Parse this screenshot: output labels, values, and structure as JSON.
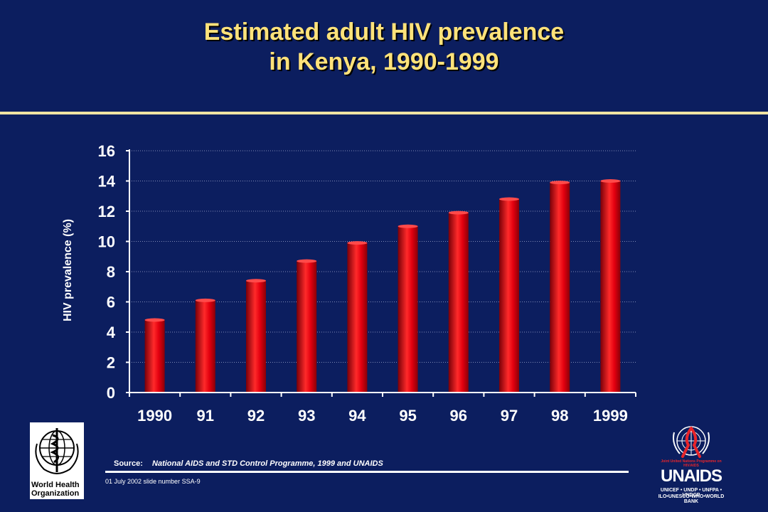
{
  "slide": {
    "title_line1": "Estimated adult HIV prevalence",
    "title_line2": "in Kenya, 1990-1999",
    "source_label": "Source:",
    "source_text": "National AIDS and STD Control Programme, 1999 and UNAIDS",
    "footnote": "01 July 2002 slide number SSA-9"
  },
  "logos": {
    "who_name_line1": "World Health",
    "who_name_line2": "Organization",
    "unaids_name": "UNAIDS",
    "unaids_tagline": "Joint United Nations Programme on HIV/AIDS",
    "unaids_partners_line1": "UNICEF • UNDP • UNFPA • UNDCP",
    "unaids_partners_line2": "ILO•UNESCO•WHO•WORLD BANK"
  },
  "colors": {
    "background": "#0c1e5f",
    "title": "#ffe27a",
    "bar": "#e3000f"
  },
  "chart_data": {
    "type": "bar",
    "title": "Estimated adult HIV prevalence in Kenya, 1990-1999",
    "ylabel": "HIV prevalence (%)",
    "xlabel": "",
    "categories": [
      "1990",
      "91",
      "92",
      "93",
      "94",
      "95",
      "96",
      "97",
      "98",
      "1999"
    ],
    "values": [
      4.8,
      6.1,
      7.4,
      8.7,
      9.9,
      11.0,
      11.9,
      12.8,
      13.9,
      14.0
    ],
    "ylim": [
      0,
      16
    ],
    "yticks": [
      0,
      2,
      4,
      6,
      8,
      10,
      12,
      14,
      16
    ],
    "grid": true
  }
}
